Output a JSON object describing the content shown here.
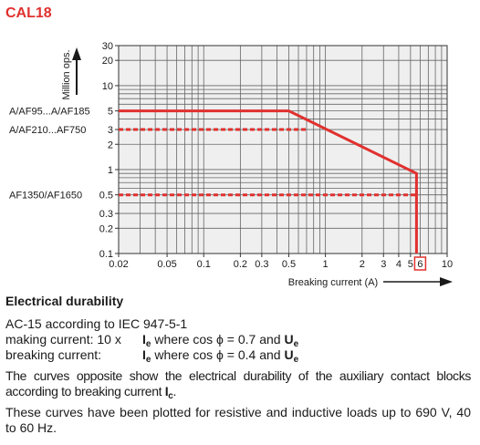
{
  "title": "CAL18",
  "chart_data": {
    "type": "line",
    "xscale": "log",
    "yscale": "log",
    "xlim": [
      0.02,
      10
    ],
    "ylim": [
      0.1,
      30
    ],
    "xlabel": "Breaking current (A)",
    "ylabel": "Million ops.",
    "xticks": [
      {
        "value": 0.02,
        "label": "0.02"
      },
      {
        "value": 0.05,
        "label": "0.05"
      },
      {
        "value": 0.1,
        "label": "0.1"
      },
      {
        "value": 0.2,
        "label": "0.2"
      },
      {
        "value": 0.3,
        "label": "0.3"
      },
      {
        "value": 0.5,
        "label": "0.5"
      },
      {
        "value": 1,
        "label": "1"
      },
      {
        "value": 2,
        "label": "2"
      },
      {
        "value": 3,
        "label": "3"
      },
      {
        "value": 4,
        "label": "4"
      },
      {
        "value": 5,
        "label": "5"
      },
      {
        "value": 6,
        "label": "6",
        "boxed": true
      },
      {
        "value": 10,
        "label": "10"
      }
    ],
    "yticks": [
      {
        "value": 0.1,
        "label": "0.1"
      },
      {
        "value": 0.2,
        "label": "0.2"
      },
      {
        "value": 0.3,
        "label": "0.3"
      },
      {
        "value": 0.5,
        "label": "0.5"
      },
      {
        "value": 1,
        "label": "1"
      },
      {
        "value": 2,
        "label": "2"
      },
      {
        "value": 3,
        "label": "3"
      },
      {
        "value": 5,
        "label": "5"
      },
      {
        "value": 10,
        "label": "10"
      },
      {
        "value": 20,
        "label": "20"
      },
      {
        "value": 30,
        "label": "30"
      }
    ],
    "series": [
      {
        "name": "A/AF95...A/AF185",
        "style": "solid",
        "points": [
          [
            0.02,
            5
          ],
          [
            0.5,
            5
          ],
          [
            5.6,
            0.9
          ],
          [
            5.6,
            0.1
          ]
        ]
      },
      {
        "name": "A/AF210...AF750",
        "style": "dashed",
        "points": [
          [
            0.02,
            3
          ],
          [
            0.7,
            3
          ]
        ]
      },
      {
        "name": "AF1350/AF1650",
        "style": "dashed",
        "points": [
          [
            0.02,
            0.5
          ],
          [
            5.6,
            0.5
          ]
        ]
      }
    ],
    "color": "#e0312f"
  },
  "text": {
    "heading": "Electrical durability",
    "standard": "AC-15 according to IEC 947-5-1",
    "making_label": "making current: 10 x",
    "making_rest": "where cos ϕ = 0.7 and",
    "breaking_label": "breaking current:",
    "breaking_rest": "where cos ϕ = 0.4 and",
    "ie_sym": "I",
    "ie_sub": "e",
    "ue_sym": "U",
    "ue_sub": "e",
    "ic_sym": "I",
    "ic_sub": "c",
    "para1": "The curves opposite show the electrical durability of the auxiliary contact blocks according to breaking current",
    "para1_end": ".",
    "para2": "These curves have been plotted for resistive and inductive loads up to 690 V, 40 to 60 Hz."
  }
}
